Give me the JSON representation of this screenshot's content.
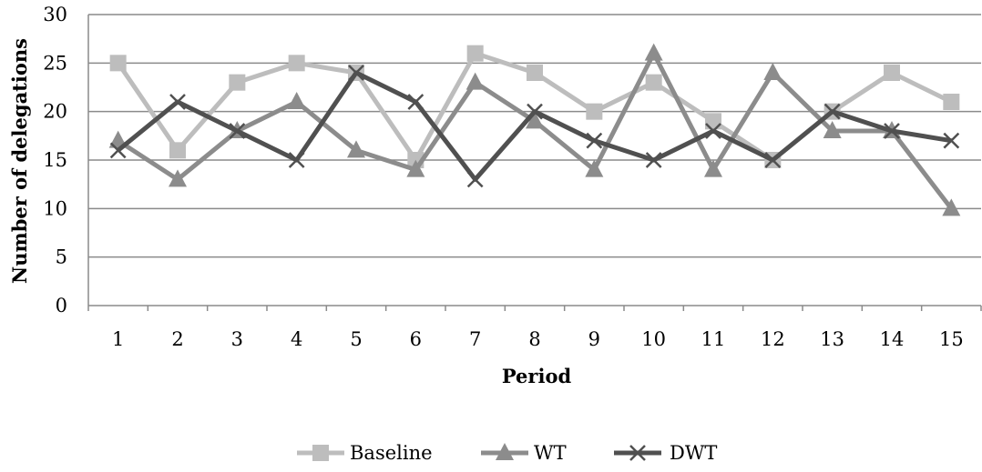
{
  "chart_data": {
    "type": "line",
    "title": "",
    "xlabel": "Period",
    "ylabel": "Number of delegations",
    "categories": [
      "1",
      "2",
      "3",
      "4",
      "5",
      "6",
      "7",
      "8",
      "9",
      "10",
      "11",
      "12",
      "13",
      "14",
      "15"
    ],
    "ylim": [
      0,
      30
    ],
    "yticks": [
      "0",
      "5",
      "10",
      "15",
      "20",
      "25",
      "30"
    ],
    "grid": true,
    "legend_position": "bottom",
    "series": [
      {
        "name": "Baseline",
        "color": "#bdbdbd",
        "marker": "square",
        "values": [
          25,
          16,
          23,
          25,
          24,
          15,
          26,
          24,
          20,
          23,
          19,
          15,
          20,
          24,
          21
        ]
      },
      {
        "name": "WT",
        "color": "#8c8c8c",
        "marker": "triangle",
        "values": [
          17,
          13,
          18,
          21,
          16,
          14,
          23,
          19,
          14,
          26,
          14,
          24,
          18,
          18,
          10
        ]
      },
      {
        "name": "DWT",
        "color": "#505050",
        "marker": "x",
        "values": [
          16,
          21,
          18,
          15,
          24,
          21,
          13,
          20,
          17,
          15,
          18,
          15,
          20,
          18,
          17
        ]
      }
    ]
  }
}
